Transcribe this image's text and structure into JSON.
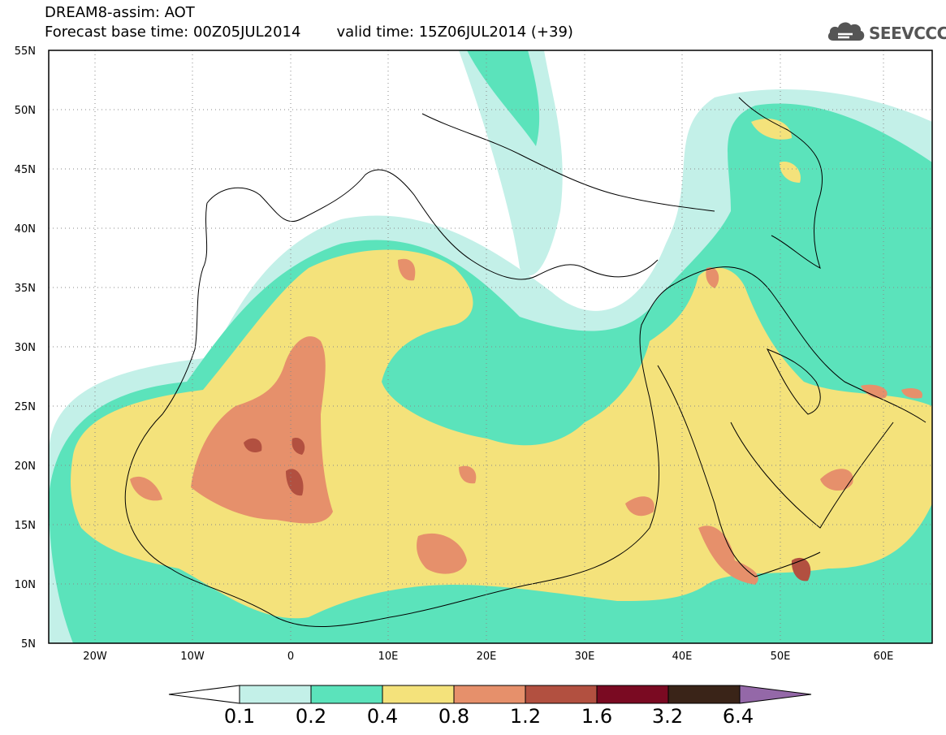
{
  "title": {
    "line1": "DREAM8-assim: AOT",
    "base_time": "Forecast base time: 00Z05JUL2014",
    "valid_time": "valid time: 15Z06JUL2014 (+39)"
  },
  "logo": {
    "text": "SEEVCCC",
    "icon": "cloud-icon"
  },
  "map": {
    "lat_ticks": [
      "55N",
      "50N",
      "45N",
      "40N",
      "35N",
      "30N",
      "25N",
      "20N",
      "15N",
      "10N",
      "5N"
    ],
    "lon_ticks": [
      "20W",
      "10W",
      "0",
      "10E",
      "20E",
      "30E",
      "40E",
      "50E",
      "60E"
    ],
    "grid": true
  },
  "colorbar": {
    "labels": [
      "0.1",
      "0.2",
      "0.4",
      "0.8",
      "1.2",
      "1.6",
      "3.2",
      "6.4"
    ],
    "colors": [
      "#ffffff",
      "#c3f0e8",
      "#5be3bb",
      "#f4e27b",
      "#e6906b",
      "#b25040",
      "#7a0a22",
      "#3a2418",
      "#9468a8"
    ]
  },
  "palette": {
    "coast": "#000000",
    "land_bg": "#ffffff"
  }
}
